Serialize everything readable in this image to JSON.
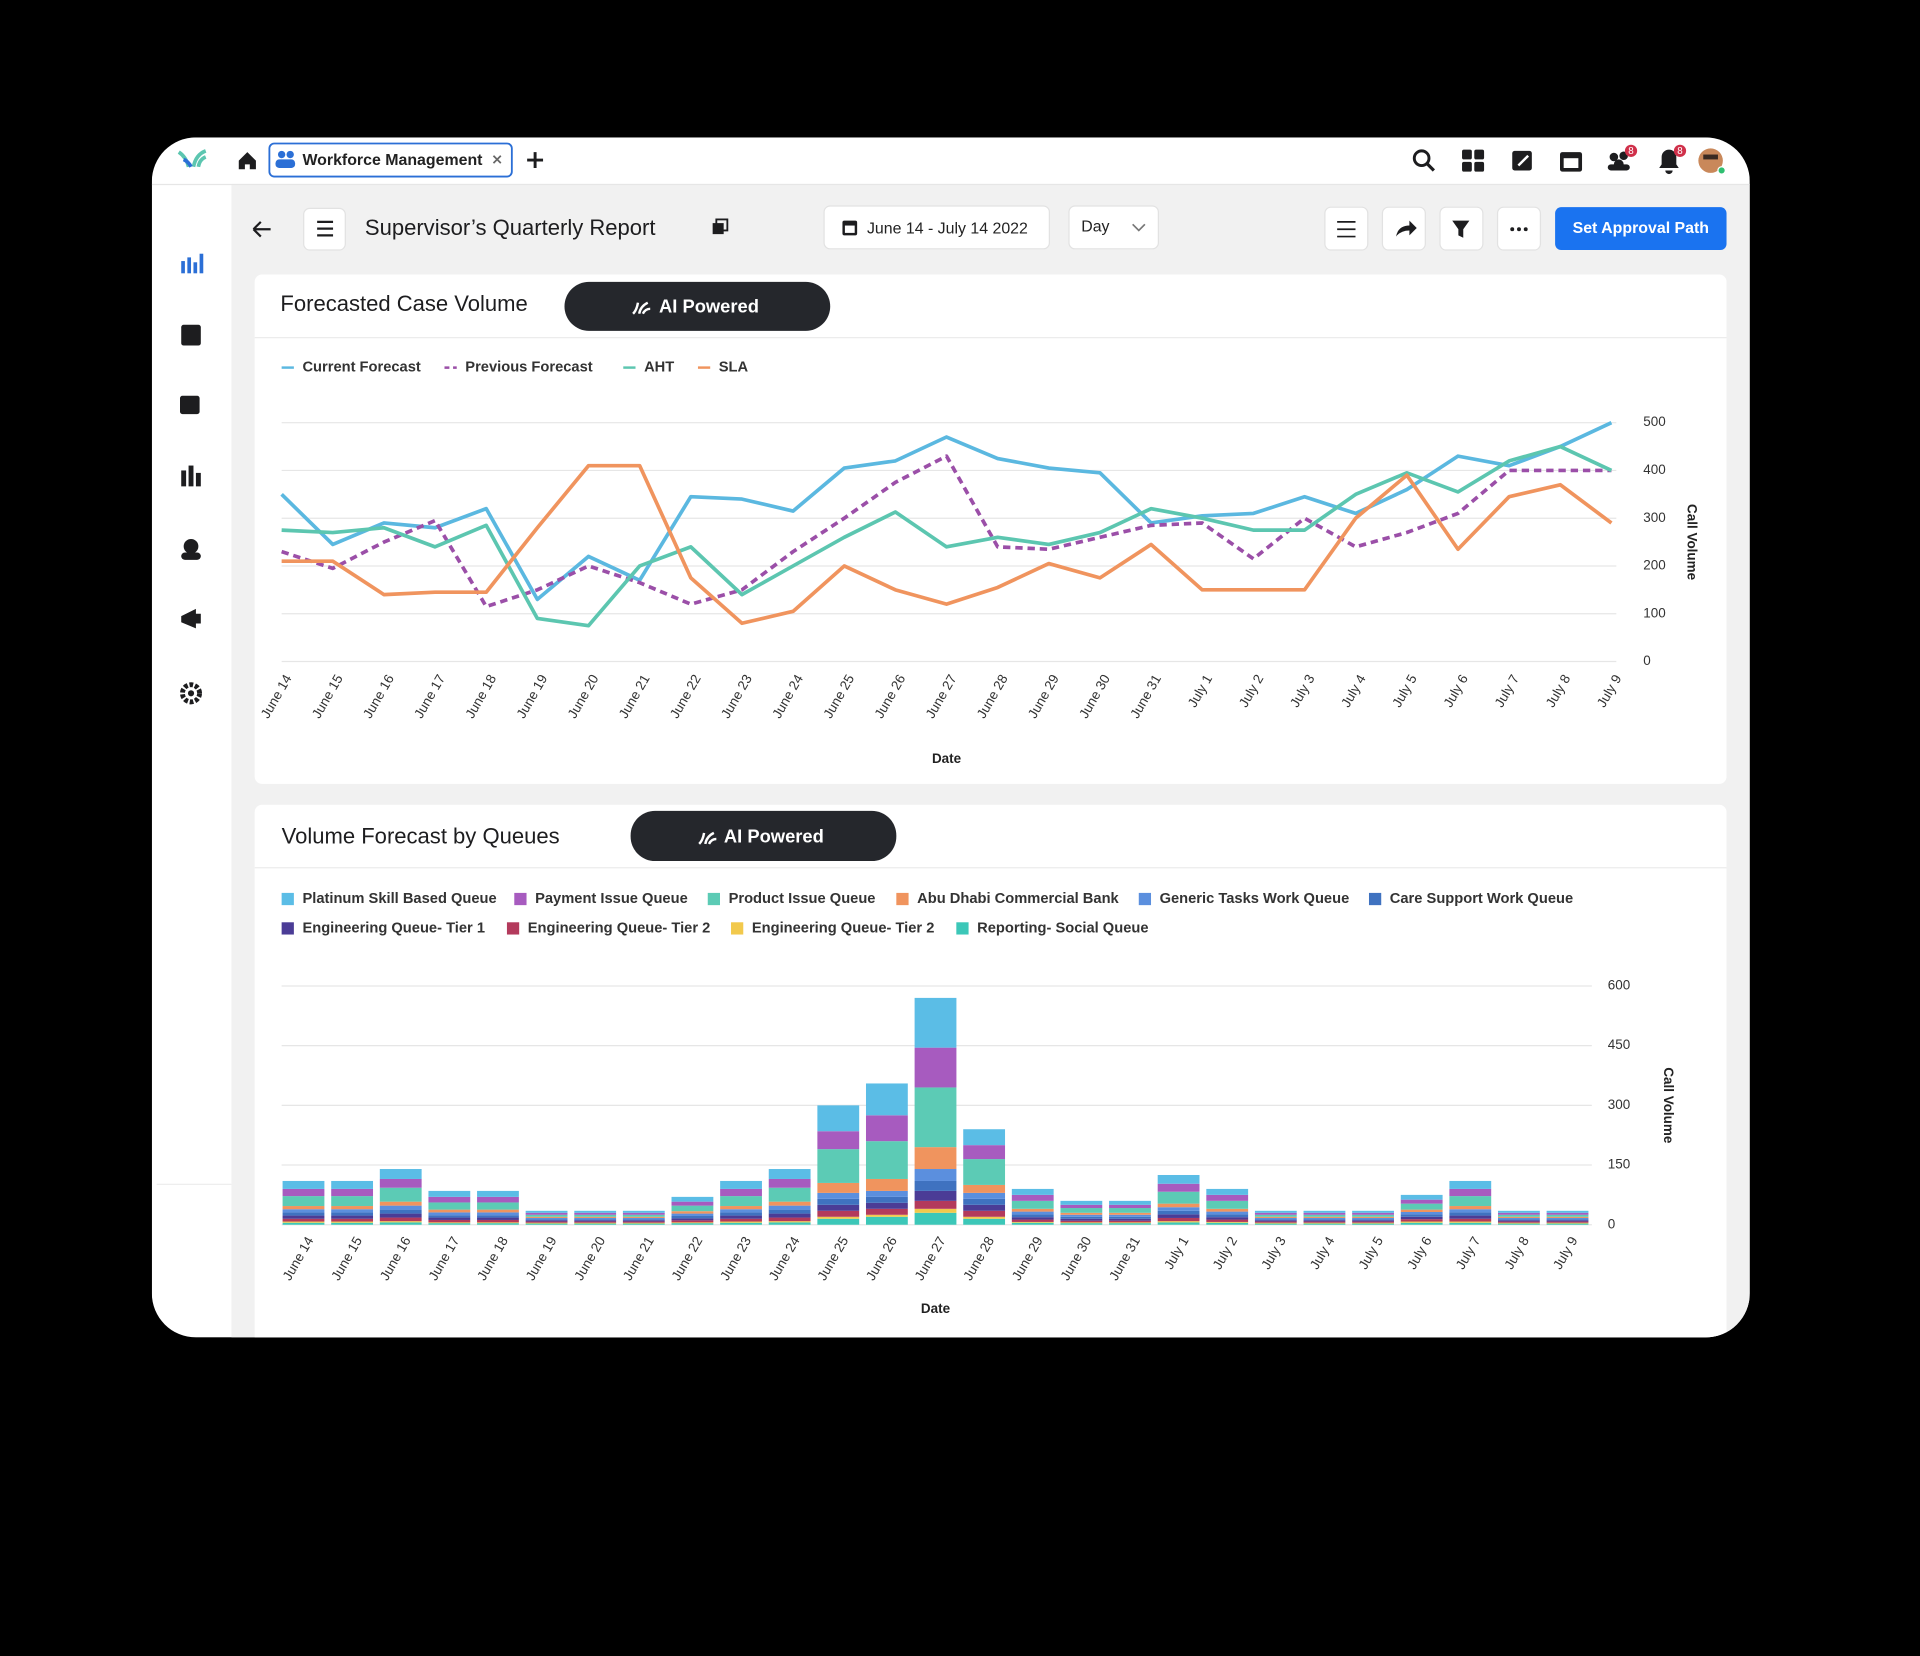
{
  "tab": {
    "title": "Workforce Management"
  },
  "badges": [
    "8",
    "8"
  ],
  "report": {
    "title": "Supervisor’s Quarterly Report",
    "date_range": "June 14 - July 14 2022",
    "granularity": "Day",
    "approval_button": "Set Approval Path"
  },
  "chart_data": [
    {
      "type": "line",
      "title": "Forecasted Case Volume",
      "badge": "AI Powered",
      "x_label": "Date",
      "y_label": "Call Volume",
      "y_axis_side": "right",
      "grid": true,
      "categories": [
        "June 14",
        "June 15",
        "June 16",
        "June 17",
        "June 18",
        "June 19",
        "June 20",
        "June 21",
        "June 22",
        "June 23",
        "June 24",
        "June 25",
        "June 26",
        "June 27",
        "June 28",
        "June 29",
        "June 30",
        "June 31",
        "July 1",
        "July 2",
        "July 3",
        "July 4",
        "July 5",
        "July 6",
        "July 7",
        "July 8",
        "July 9"
      ],
      "ylim": [
        0,
        500
      ],
      "yticks": [
        0,
        100,
        200,
        300,
        400,
        500
      ],
      "series": [
        {
          "name": "Current Forecast",
          "color": "#5bb8e0",
          "style": "solid",
          "values": [
            350,
            245,
            290,
            280,
            320,
            130,
            220,
            170,
            345,
            340,
            315,
            405,
            420,
            470,
            425,
            405,
            395,
            290,
            305,
            310,
            345,
            310,
            360,
            430,
            410,
            450,
            500
          ]
        },
        {
          "name": "Previous Forecast",
          "color": "#9b4fa8",
          "style": "dashed",
          "values": [
            230,
            195,
            250,
            295,
            115,
            150,
            200,
            165,
            120,
            150,
            230,
            300,
            375,
            430,
            240,
            235,
            260,
            285,
            290,
            215,
            300,
            240,
            270,
            310,
            400,
            400,
            400
          ]
        },
        {
          "name": "AHT",
          "color": "#5cc6b0",
          "style": "solid",
          "values": [
            275,
            270,
            280,
            240,
            285,
            90,
            75,
            200,
            240,
            140,
            200,
            260,
            313,
            240,
            260,
            245,
            270,
            320,
            300,
            275,
            275,
            350,
            395,
            355,
            420,
            450,
            400
          ]
        },
        {
          "name": "SLA",
          "color": "#f0945e",
          "style": "solid",
          "values": [
            210,
            210,
            140,
            145,
            145,
            280,
            410,
            410,
            175,
            80,
            105,
            200,
            150,
            120,
            155,
            205,
            175,
            245,
            150,
            150,
            150,
            300,
            390,
            235,
            345,
            370,
            290
          ]
        }
      ]
    },
    {
      "type": "bar",
      "stacked": true,
      "title": "Volume Forecast by Queues",
      "badge": "AI Powered",
      "x_label": "Date",
      "y_label": "Call Volume",
      "y_axis_side": "right",
      "grid": true,
      "categories": [
        "June 14",
        "June 15",
        "June 16",
        "June 17",
        "June 18",
        "June 19",
        "June 20",
        "June 21",
        "June 22",
        "June 23",
        "June 24",
        "June 25",
        "June 26",
        "June 27",
        "June 28",
        "June 29",
        "June 30",
        "June 31",
        "July 1",
        "July 2",
        "July 3",
        "July 4",
        "July 5",
        "July 6",
        "July 7",
        "July 8",
        "July 9"
      ],
      "ylim": [
        0,
        600
      ],
      "yticks": [
        0,
        150,
        300,
        450,
        600
      ],
      "series": [
        {
          "name": "Platinum Skill Based Queue",
          "color": "#5bbde6",
          "values": [
            20,
            20,
            25,
            15,
            15,
            5,
            5,
            5,
            12,
            20,
            25,
            65,
            80,
            125,
            40,
            15,
            10,
            10,
            22,
            15,
            5,
            5,
            5,
            12,
            20,
            5,
            5
          ]
        },
        {
          "name": "Payment Issue Queue",
          "color": "#a75bbf",
          "values": [
            18,
            18,
            22,
            14,
            14,
            5,
            5,
            5,
            10,
            18,
            22,
            45,
            65,
            100,
            35,
            15,
            8,
            8,
            20,
            15,
            5,
            5,
            5,
            10,
            18,
            5,
            5
          ]
        },
        {
          "name": "Product Issue Queue",
          "color": "#5ccbb5",
          "values": [
            25,
            25,
            35,
            18,
            18,
            5,
            5,
            5,
            14,
            25,
            35,
            85,
            95,
            150,
            65,
            20,
            12,
            12,
            30,
            20,
            5,
            5,
            5,
            15,
            25,
            5,
            5
          ]
        },
        {
          "name": "Abu Dhabi Commercial Bank",
          "color": "#f0945e",
          "values": [
            8,
            8,
            10,
            7,
            7,
            3,
            3,
            3,
            6,
            8,
            10,
            25,
            30,
            55,
            20,
            7,
            5,
            5,
            9,
            7,
            3,
            3,
            3,
            6,
            8,
            3,
            3
          ]
        },
        {
          "name": "Generic Tasks Work Queue",
          "color": "#5b8fde",
          "values": [
            8,
            8,
            10,
            7,
            7,
            3,
            3,
            3,
            6,
            8,
            10,
            15,
            15,
            30,
            15,
            7,
            5,
            5,
            9,
            7,
            3,
            3,
            3,
            6,
            8,
            3,
            3
          ]
        },
        {
          "name": "Care Support Work Queue",
          "color": "#3f72c0",
          "values": [
            8,
            8,
            10,
            6,
            6,
            3,
            3,
            3,
            6,
            8,
            10,
            15,
            15,
            25,
            15,
            7,
            5,
            5,
            9,
            7,
            3,
            3,
            3,
            6,
            8,
            3,
            3
          ]
        },
        {
          "name": "Engineering Queue- Tier 1",
          "color": "#4b3c96",
          "values": [
            8,
            8,
            10,
            6,
            6,
            3,
            3,
            3,
            5,
            8,
            10,
            15,
            15,
            25,
            15,
            6,
            5,
            5,
            9,
            6,
            3,
            3,
            3,
            6,
            8,
            3,
            3
          ]
        },
        {
          "name": "Engineering Queue- Tier 2",
          "color": "#b33a5c",
          "values": [
            7,
            7,
            9,
            6,
            6,
            3,
            3,
            3,
            5,
            7,
            9,
            15,
            15,
            20,
            15,
            6,
            4,
            4,
            8,
            6,
            3,
            3,
            3,
            6,
            7,
            3,
            3
          ]
        },
        {
          "name": "Engineering Queue- Tier 2",
          "color": "#f2c94c",
          "values": [
            3,
            3,
            3,
            2,
            2,
            2,
            2,
            2,
            2,
            3,
            3,
            5,
            5,
            10,
            5,
            2,
            2,
            2,
            3,
            2,
            2,
            2,
            2,
            3,
            3,
            2,
            2
          ]
        },
        {
          "name": "Reporting- Social Queue",
          "color": "#3cc7b8",
          "values": [
            5,
            5,
            6,
            4,
            4,
            3,
            3,
            3,
            4,
            5,
            6,
            15,
            20,
            30,
            15,
            5,
            4,
            4,
            6,
            5,
            3,
            3,
            3,
            5,
            5,
            3,
            3
          ]
        }
      ]
    }
  ]
}
